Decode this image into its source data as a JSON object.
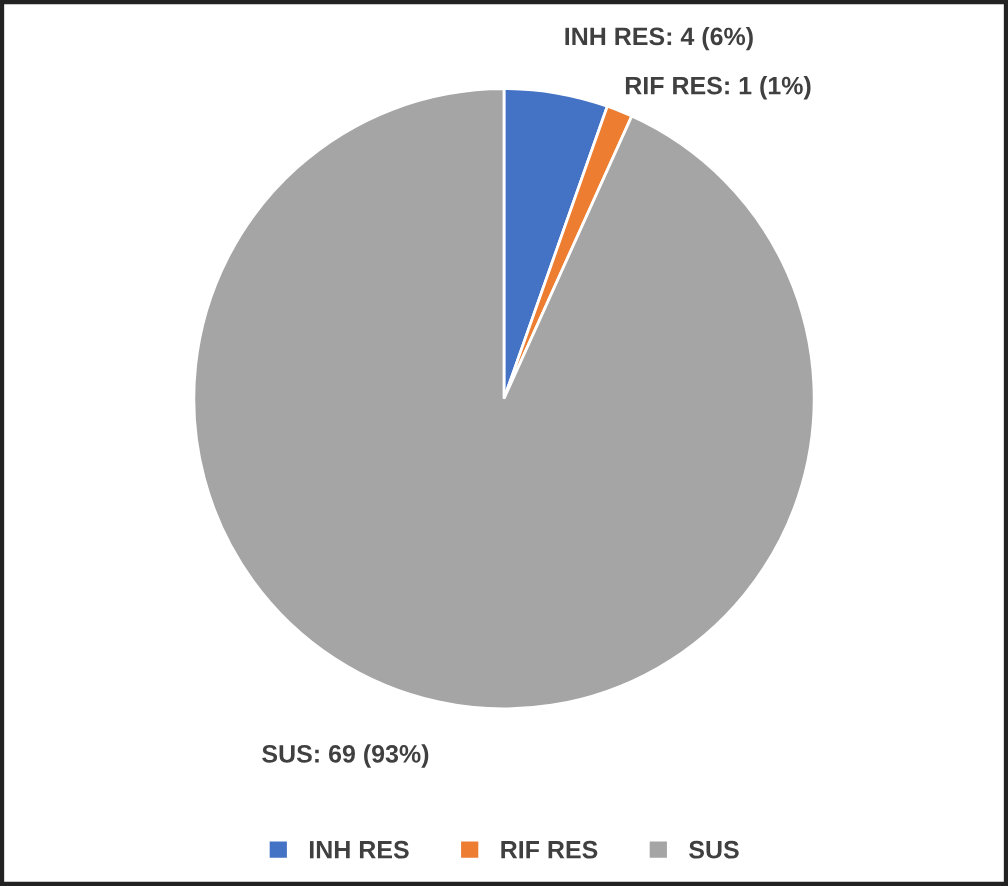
{
  "chart_data": {
    "type": "pie",
    "categories": [
      "INH RES",
      "RIF RES",
      "SUS"
    ],
    "values": [
      4,
      1,
      69
    ],
    "colors": [
      "#4472c4",
      "#ed7d31",
      "#a5a5a5"
    ],
    "value_labels": [
      "INH RES: 4 (6%)",
      "RIF RES: 1 (1%)",
      "SUS: 69 (93%)"
    ],
    "legend": "bottom"
  }
}
